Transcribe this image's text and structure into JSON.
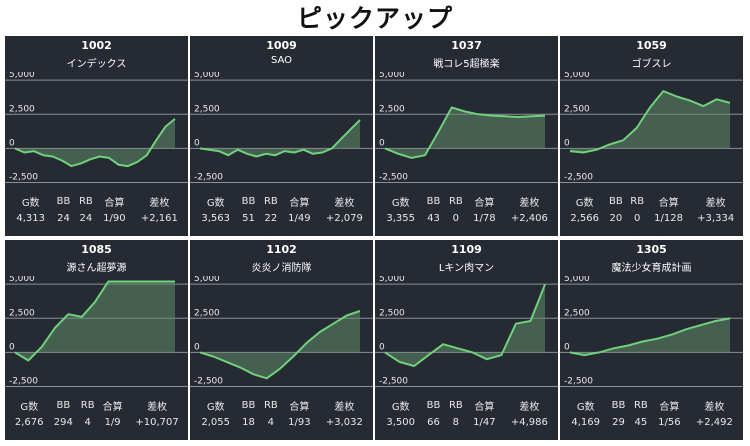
{
  "page_title": "ピックアップ",
  "y_ticks": [
    "5,000",
    "2,500",
    "0",
    "-2,500"
  ],
  "stat_headers": [
    "G数",
    "BB",
    "RB",
    "合算",
    "差枚"
  ],
  "colors": {
    "card_bg": "#262a33",
    "line": "#6fd27a",
    "fill": "#5f8a69",
    "grid": "#8b8f98"
  },
  "machines": [
    {
      "number": "1002",
      "name": "インデックス",
      "stats": {
        "games": "4,313",
        "bb": "24",
        "rb": "24",
        "combined": "1/90",
        "diff": "+2,161"
      },
      "chart_data": {
        "type": "area",
        "ylim": [
          -3200,
          5600
        ],
        "values": [
          0,
          -300,
          -200,
          -500,
          -600,
          -900,
          -1300,
          -1100,
          -800,
          -600,
          -700,
          -1200,
          -1300,
          -1000,
          -500,
          600,
          1600,
          2161
        ]
      }
    },
    {
      "number": "1009",
      "name": "SAO",
      "stats": {
        "games": "3,563",
        "bb": "51",
        "rb": "22",
        "combined": "1/49",
        "diff": "+2,079"
      },
      "chart_data": {
        "type": "area",
        "ylim": [
          -3200,
          5600
        ],
        "values": [
          0,
          -100,
          -200,
          -500,
          -100,
          -400,
          -600,
          -400,
          -500,
          -200,
          -300,
          -100,
          -400,
          -300,
          0,
          700,
          1400,
          2079
        ]
      }
    },
    {
      "number": "1037",
      "name": "戦コレ5超極楽",
      "stats": {
        "games": "3,355",
        "bb": "43",
        "rb": "0",
        "combined": "1/78",
        "diff": "+2,406"
      },
      "chart_data": {
        "type": "area",
        "ylim": [
          -3200,
          5600
        ],
        "values": [
          0,
          -400,
          -700,
          -500,
          1200,
          3000,
          2700,
          2500,
          2400,
          2350,
          2300,
          2350,
          2406
        ]
      }
    },
    {
      "number": "1059",
      "name": "ゴブスレ",
      "stats": {
        "games": "2,566",
        "bb": "20",
        "rb": "0",
        "combined": "1/128",
        "diff": "+3,334"
      },
      "chart_data": {
        "type": "area",
        "ylim": [
          -3200,
          5600
        ],
        "values": [
          -200,
          -300,
          -100,
          300,
          600,
          1500,
          3000,
          4200,
          3800,
          3500,
          3100,
          3600,
          3334
        ]
      }
    },
    {
      "number": "1085",
      "name": "源さん超夢源",
      "stats": {
        "games": "2,676",
        "bb": "294",
        "rb": "4",
        "combined": "1/9",
        "diff": "+10,707"
      },
      "chart_data": {
        "type": "area",
        "ylim": [
          -3200,
          5600
        ],
        "values": [
          0,
          -600,
          400,
          1800,
          2800,
          2600,
          3700,
          5200,
          5200,
          5200,
          5200,
          5200,
          5200
        ]
      }
    },
    {
      "number": "1102",
      "name": "炎炎ノ消防隊",
      "stats": {
        "games": "2,055",
        "bb": "18",
        "rb": "4",
        "combined": "1/93",
        "diff": "+3,032"
      },
      "chart_data": {
        "type": "area",
        "ylim": [
          -3200,
          5600
        ],
        "values": [
          0,
          -300,
          -700,
          -1100,
          -1600,
          -1900,
          -1200,
          -300,
          700,
          1500,
          2100,
          2700,
          3032
        ]
      }
    },
    {
      "number": "1109",
      "name": "Lキン肉マン",
      "stats": {
        "games": "3,500",
        "bb": "66",
        "rb": "8",
        "combined": "1/47",
        "diff": "+4,986"
      },
      "chart_data": {
        "type": "area",
        "ylim": [
          -3200,
          5600
        ],
        "values": [
          0,
          -700,
          -1000,
          -200,
          600,
          300,
          0,
          -500,
          -200,
          2100,
          2300,
          4986
        ]
      }
    },
    {
      "number": "1305",
      "name": "魔法少女育成計画",
      "stats": {
        "games": "4,169",
        "bb": "29",
        "rb": "45",
        "combined": "1/56",
        "diff": "+2,492"
      },
      "chart_data": {
        "type": "area",
        "ylim": [
          -3200,
          5600
        ],
        "values": [
          0,
          -200,
          0,
          300,
          500,
          800,
          1000,
          1300,
          1700,
          2000,
          2300,
          2492
        ]
      }
    }
  ]
}
